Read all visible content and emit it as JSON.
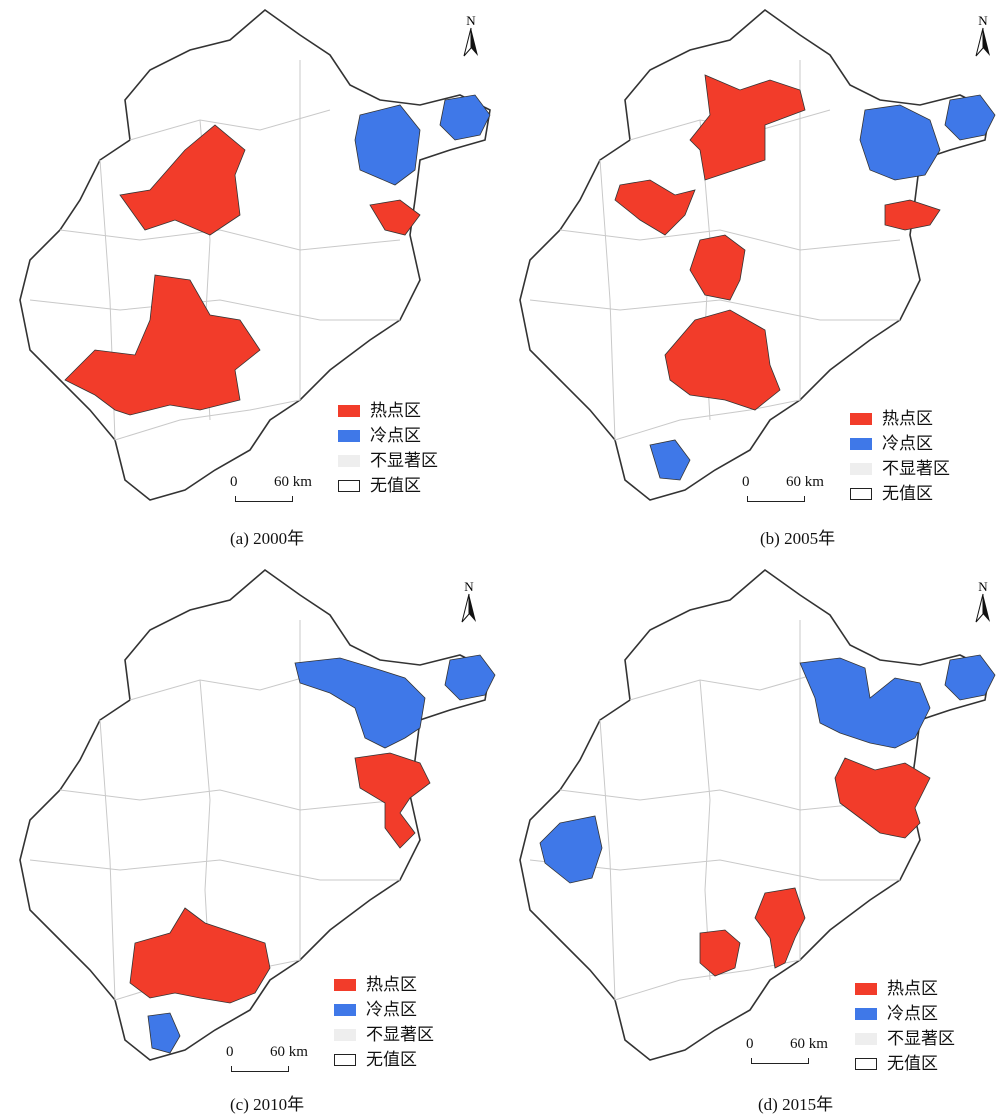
{
  "legend": {
    "hot": "热点区",
    "cold": "冷点区",
    "insignificant": "不显著区",
    "novalue": "无值区"
  },
  "scale": {
    "zero": "0",
    "distance": "60 km"
  },
  "north_label": "N",
  "colors": {
    "hot": "#f23c2a",
    "cold": "#3f78e8",
    "insignificant": "#eeeeee",
    "border": "#333333",
    "inner": "#c9c9c9"
  },
  "panels": [
    {
      "id": "a",
      "caption": "(a) 2000年"
    },
    {
      "id": "b",
      "caption": "(b) 2005年"
    },
    {
      "id": "c",
      "caption": "(c) 2010年"
    },
    {
      "id": "d",
      "caption": "(d) 2015年"
    }
  ]
}
